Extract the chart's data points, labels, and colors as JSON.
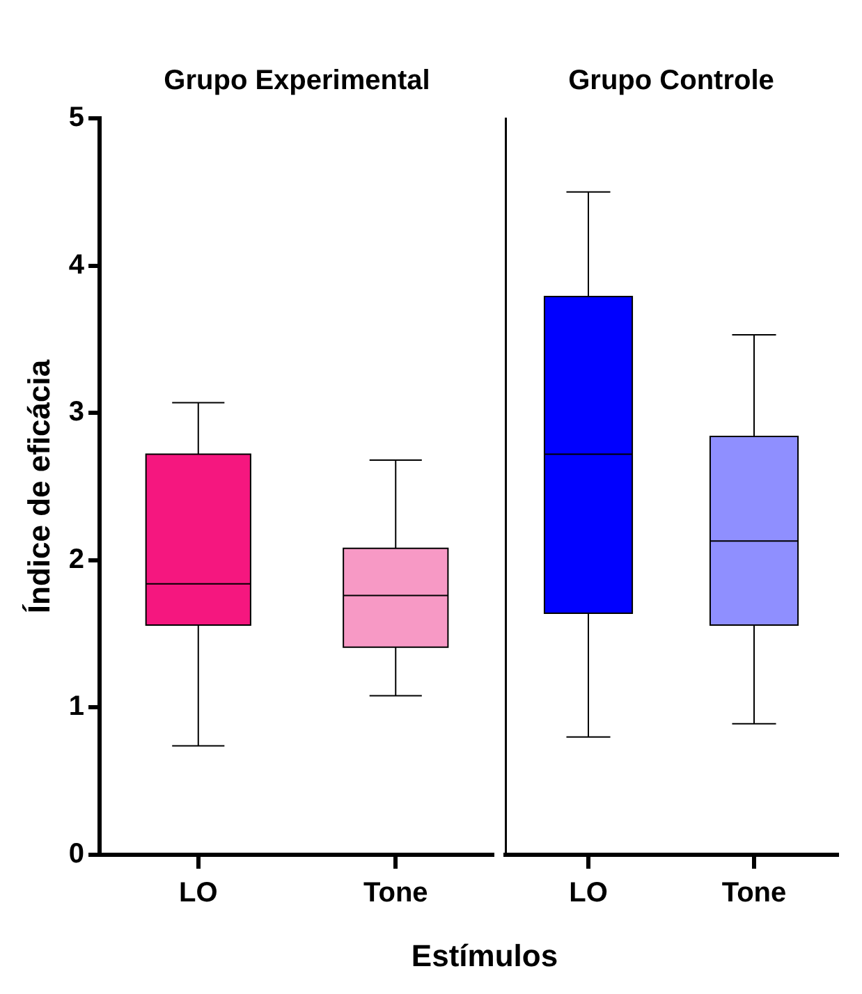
{
  "chart_data": [
    {
      "type": "box",
      "title": "Grupo Experimental",
      "ylabel": "Índice de eficácia",
      "xlabel": "Estímulos",
      "categories": [
        "LO",
        "Tone"
      ],
      "colors": [
        "#f5177f",
        "#f799c5"
      ],
      "boxes": [
        {
          "low": 0.74,
          "q1": 1.56,
          "median": 1.84,
          "q3": 2.72,
          "high": 3.07
        },
        {
          "low": 1.08,
          "q1": 1.41,
          "median": 1.76,
          "q3": 2.08,
          "high": 2.68
        }
      ],
      "ylim": [
        0,
        5
      ],
      "yticks": [
        0,
        1,
        2,
        3,
        4,
        5
      ]
    },
    {
      "type": "box",
      "title": "Grupo Controle",
      "categories": [
        "LO",
        "Tone"
      ],
      "colors": [
        "#0000ff",
        "#8f8fff"
      ],
      "boxes": [
        {
          "low": 0.8,
          "q1": 1.64,
          "median": 2.72,
          "q3": 3.79,
          "high": 4.5
        },
        {
          "low": 0.89,
          "q1": 1.56,
          "median": 2.13,
          "q3": 2.84,
          "high": 3.53
        }
      ],
      "ylim": [
        0,
        5
      ],
      "tick_labels": "x"
    }
  ]
}
